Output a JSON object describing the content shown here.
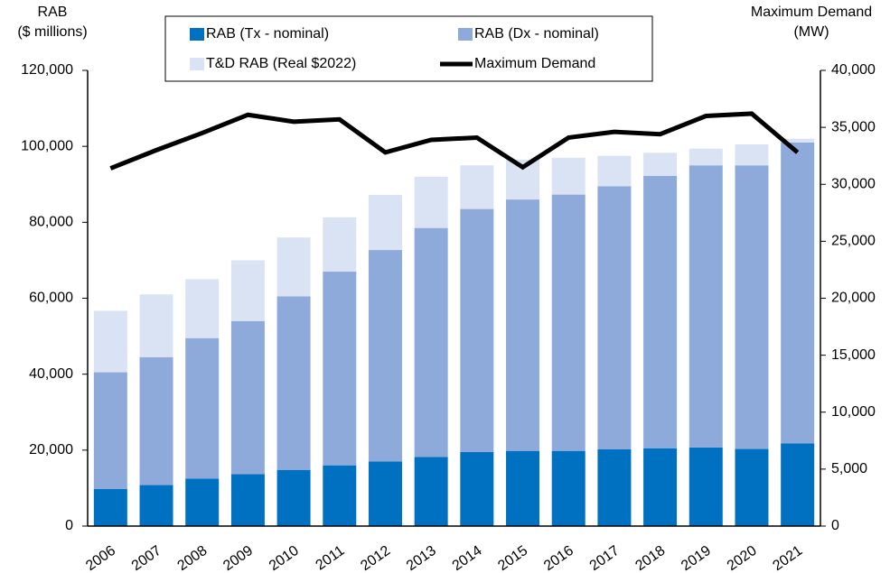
{
  "chart_data": {
    "type": "bar",
    "stacked": true,
    "y_label": [
      "RAB",
      "($ millions)"
    ],
    "y2_label": [
      "Maximum Demand",
      "(MW)"
    ],
    "categories": [
      "2006",
      "2007",
      "2008",
      "2009",
      "2010",
      "2011",
      "2012",
      "2013",
      "2014",
      "2015",
      "2016",
      "2017",
      "2018",
      "2019",
      "2020",
      "2021"
    ],
    "series": [
      {
        "name": "RAB (Tx - nominal)",
        "color": "#0070c0",
        "values": [
          9800,
          10800,
          12500,
          13700,
          14800,
          16000,
          17000,
          18200,
          19500,
          19800,
          19800,
          20200,
          20500,
          20700,
          20300,
          21800
        ]
      },
      {
        "name": "RAB (Dx - nominal)",
        "color": "#8eaadb",
        "values": [
          30700,
          33700,
          37000,
          40300,
          45700,
          51000,
          55700,
          60300,
          64000,
          66200,
          67500,
          69300,
          71700,
          74300,
          74700,
          79200
        ]
      },
      {
        "name": "T&D RAB (Real $2022)",
        "color": "#dae3f3",
        "values": [
          16200,
          16500,
          15500,
          16000,
          15500,
          14300,
          14500,
          13500,
          11500,
          10500,
          9700,
          8000,
          6100,
          4400,
          5500,
          1000
        ]
      },
      {
        "name": "Maximum Demand",
        "color": "#000000",
        "type": "line",
        "axis": "y2",
        "values": [
          31400,
          33000,
          34500,
          36100,
          35500,
          35700,
          32800,
          33900,
          34100,
          31500,
          34100,
          34600,
          34400,
          36000,
          36200,
          32800
        ]
      }
    ],
    "ylim": [
      0,
      120000
    ],
    "yticks": [
      0,
      {
        "value": 20000,
        "label": "20,000"
      },
      {
        "value": 40000,
        "label": "40,000"
      },
      {
        "value": 60000,
        "label": "60,000"
      },
      {
        "value": 80000,
        "label": "80,000"
      },
      {
        "value": 100000,
        "label": "100,000"
      },
      {
        "value": 120000,
        "label": "120,000"
      }
    ],
    "y2lim": [
      0,
      40000
    ],
    "y2ticks": [
      0,
      {
        "value": 5000,
        "label": "5,000"
      },
      {
        "value": 10000,
        "label": "10,000"
      },
      {
        "value": 15000,
        "label": "15,000"
      },
      {
        "value": 20000,
        "label": "20,000"
      },
      {
        "value": 25000,
        "label": "25,000"
      },
      {
        "value": 30000,
        "label": "30,000"
      },
      {
        "value": 35000,
        "label": "35,000"
      },
      {
        "value": 40000,
        "label": "40,000"
      }
    ],
    "grid": false,
    "legend": "top"
  }
}
